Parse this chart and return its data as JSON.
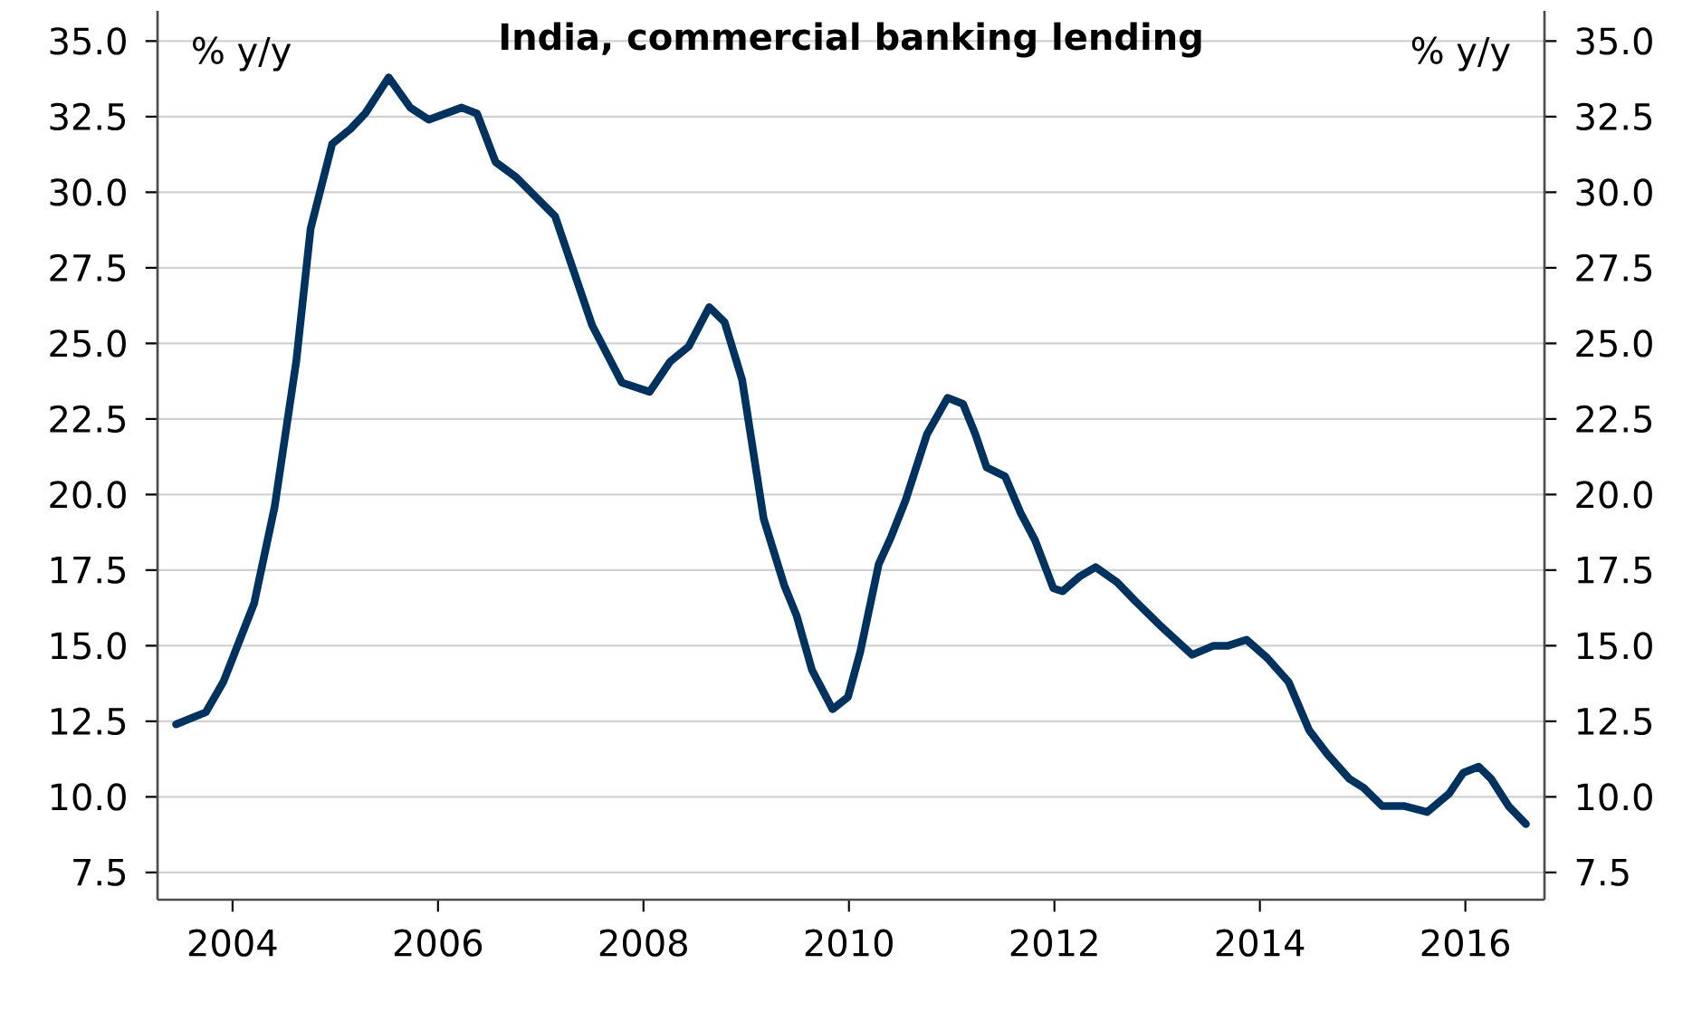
{
  "chart_data": {
    "type": "line",
    "title": "India, commercial banking lending",
    "ylabel": "% y/y",
    "y2label": "% y/y",
    "x": [
      2003.45,
      2003.74,
      2003.91,
      2004.21,
      2004.41,
      2004.62,
      2004.76,
      2004.97,
      2005.15,
      2005.29,
      2005.52,
      2005.73,
      2005.91,
      2006.23,
      2006.38,
      2006.56,
      2006.76,
      2007.14,
      2007.5,
      2007.79,
      2008.06,
      2008.26,
      2008.44,
      2008.64,
      2008.79,
      2008.96,
      2009.17,
      2009.37,
      2009.49,
      2009.64,
      2009.84,
      2009.99,
      2010.11,
      2010.29,
      2010.41,
      2010.55,
      2010.76,
      2010.96,
      2011.11,
      2011.23,
      2011.34,
      2011.52,
      2011.67,
      2011.81,
      2011.99,
      2012.08,
      2012.25,
      2012.4,
      2012.61,
      2012.78,
      2013.02,
      2013.34,
      2013.55,
      2013.69,
      2013.87,
      2014.07,
      2014.28,
      2014.48,
      2014.66,
      2014.87,
      2015.01,
      2015.19,
      2015.4,
      2015.63,
      2015.84,
      2015.98,
      2016.13,
      2016.25,
      2016.42,
      2016.59
    ],
    "series": [
      {
        "color": "#00325f",
        "values": [
          12.4,
          12.8,
          13.8,
          16.4,
          19.6,
          24.4,
          28.8,
          31.6,
          32.1,
          32.6,
          33.8,
          32.8,
          32.4,
          32.8,
          32.6,
          31.0,
          30.5,
          29.2,
          25.6,
          23.7,
          23.4,
          24.4,
          24.9,
          26.2,
          25.7,
          23.8,
          19.2,
          17.0,
          16.0,
          14.2,
          12.9,
          13.3,
          14.8,
          17.7,
          18.6,
          19.8,
          22.0,
          23.2,
          23.0,
          22.0,
          20.9,
          20.6,
          19.4,
          18.5,
          16.9,
          16.8,
          17.3,
          17.6,
          17.1,
          16.5,
          15.7,
          14.7,
          15.0,
          15.0,
          15.2,
          14.6,
          13.8,
          12.2,
          11.4,
          10.6,
          10.3,
          9.7,
          9.7,
          9.5,
          10.1,
          10.8,
          11.0,
          10.6,
          9.7,
          9.1
        ]
      }
    ],
    "xlim": [
      2003.27,
      2016.77
    ],
    "xticks": [
      2004,
      2006,
      2008,
      2010,
      2012,
      2014,
      2016
    ],
    "ylim": [
      6.6,
      36.0
    ],
    "yticks": [
      {
        "value": 7.5,
        "label": "7.5"
      },
      {
        "value": 10,
        "label": "10.0"
      },
      {
        "value": 12.5,
        "label": "12.5"
      },
      {
        "value": 15,
        "label": "15.0"
      },
      {
        "value": 17.5,
        "label": "17.5"
      },
      {
        "value": 20,
        "label": "20.0"
      },
      {
        "value": 22.5,
        "label": "22.5"
      },
      {
        "value": 25,
        "label": "25.0"
      },
      {
        "value": 27.5,
        "label": "27.5"
      },
      {
        "value": 30,
        "label": "30.0"
      },
      {
        "value": 32.5,
        "label": "32.5"
      },
      {
        "value": 35,
        "label": "35.0"
      }
    ],
    "y2lim": [
      6.6,
      36.0
    ],
    "y2ticks": [
      {
        "value": 7.5,
        "label": "7.5"
      },
      {
        "value": 10,
        "label": "10.0"
      },
      {
        "value": 12.5,
        "label": "12.5"
      },
      {
        "value": 15,
        "label": "15.0"
      },
      {
        "value": 17.5,
        "label": "17.5"
      },
      {
        "value": 20,
        "label": "20.0"
      },
      {
        "value": 22.5,
        "label": "22.5"
      },
      {
        "value": 25,
        "label": "25.0"
      },
      {
        "value": 27.5,
        "label": "27.5"
      },
      {
        "value": 30,
        "label": "30.0"
      },
      {
        "value": 32.5,
        "label": "32.5"
      },
      {
        "value": 35,
        "label": "35.0"
      }
    ],
    "grid": "y",
    "marker": "none",
    "line_style": "solid"
  }
}
